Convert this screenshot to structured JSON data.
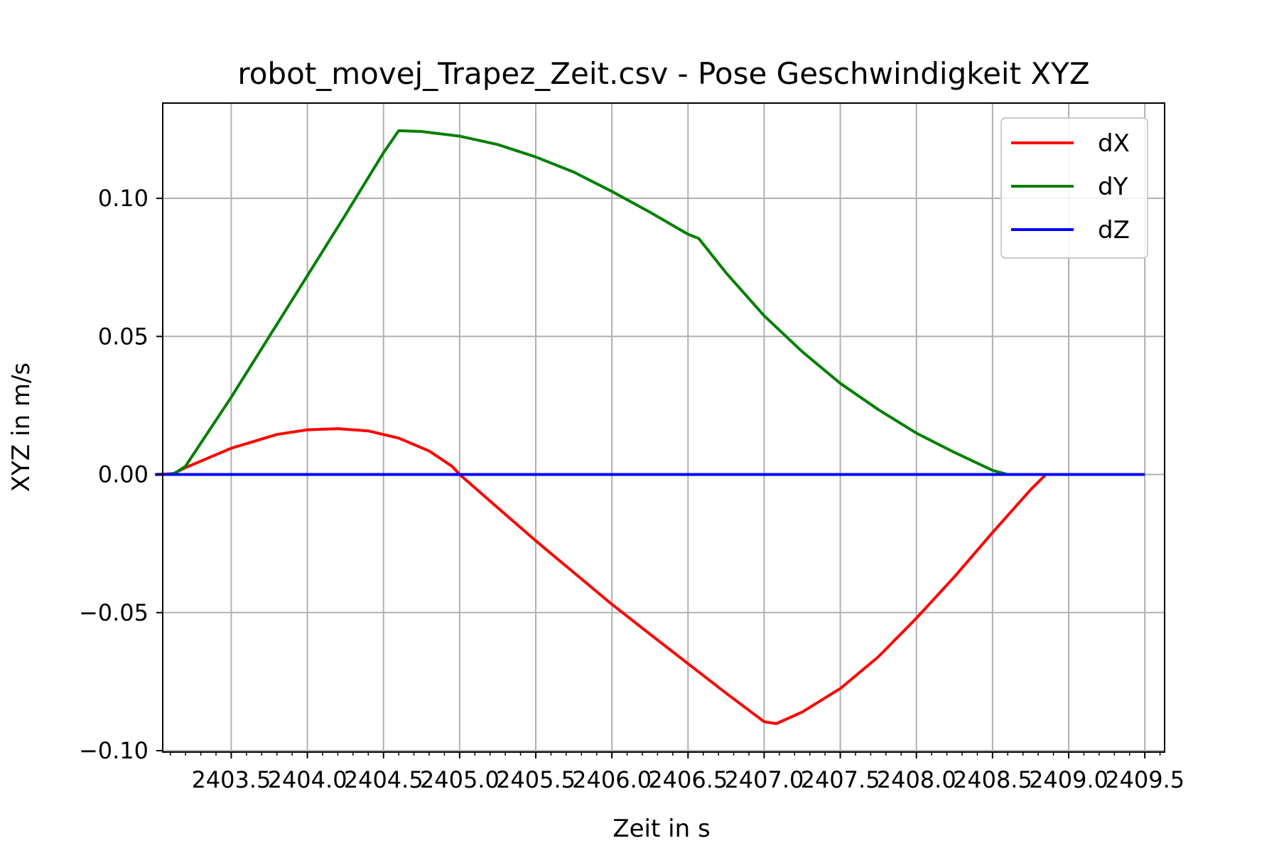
{
  "chart_data": {
    "type": "line",
    "title": "robot_movej_Trapez_Zeit.csv - Pose Geschwindigkeit XYZ",
    "xlabel": "Zeit in s",
    "ylabel": "XYZ in m/s",
    "xlim": [
      2403.05,
      2409.63
    ],
    "ylim": [
      -0.1005,
      0.1345
    ],
    "x_ticks": [
      2403.5,
      2404.0,
      2404.5,
      2405.0,
      2405.5,
      2406.0,
      2406.5,
      2407.0,
      2407.5,
      2408.0,
      2408.5,
      2409.0,
      2409.5
    ],
    "x_tick_labels": [
      "2403.5",
      "2404.0",
      "2404.5",
      "2405.0",
      "2405.5",
      "2406.0",
      "2406.5",
      "2407.0",
      "2407.5",
      "2408.0",
      "2408.5",
      "2409.0",
      "2409.5"
    ],
    "y_ticks": [
      -0.1,
      -0.05,
      0.0,
      0.05,
      0.1
    ],
    "y_tick_labels": [
      "−0.10",
      "−0.05",
      "0.00",
      "0.05",
      "0.10"
    ],
    "grid": true,
    "legend": "top-right",
    "series": [
      {
        "name": "dX",
        "color": "#ff0000",
        "points": [
          [
            2403.0,
            0.0
          ],
          [
            2403.12,
            0.0003
          ],
          [
            2403.2,
            0.0025
          ],
          [
            2403.5,
            0.0095
          ],
          [
            2403.8,
            0.0145
          ],
          [
            2404.0,
            0.0162
          ],
          [
            2404.2,
            0.0166
          ],
          [
            2404.4,
            0.0158
          ],
          [
            2404.6,
            0.0132
          ],
          [
            2404.8,
            0.0085
          ],
          [
            2404.95,
            0.003
          ],
          [
            2405.0,
            0.0
          ],
          [
            2405.25,
            -0.012
          ],
          [
            2405.5,
            -0.024
          ],
          [
            2405.75,
            -0.0355
          ],
          [
            2406.0,
            -0.047
          ],
          [
            2406.25,
            -0.0578
          ],
          [
            2406.5,
            -0.0685
          ],
          [
            2406.75,
            -0.0792
          ],
          [
            2407.0,
            -0.0895
          ],
          [
            2407.08,
            -0.0902
          ],
          [
            2407.25,
            -0.086
          ],
          [
            2407.5,
            -0.0775
          ],
          [
            2407.75,
            -0.066
          ],
          [
            2408.0,
            -0.052
          ],
          [
            2408.25,
            -0.037
          ],
          [
            2408.5,
            -0.021
          ],
          [
            2408.75,
            -0.0055
          ],
          [
            2408.85,
            0.0
          ],
          [
            2409.5,
            0.0
          ]
        ]
      },
      {
        "name": "dY",
        "color": "#008000",
        "points": [
          [
            2403.0,
            0.0
          ],
          [
            2403.08,
            0.0
          ],
          [
            2403.13,
            0.0005
          ],
          [
            2403.2,
            0.003
          ],
          [
            2403.5,
            0.028
          ],
          [
            2403.75,
            0.05
          ],
          [
            2404.0,
            0.072
          ],
          [
            2404.25,
            0.094
          ],
          [
            2404.5,
            0.1165
          ],
          [
            2404.6,
            0.1245
          ],
          [
            2404.75,
            0.1242
          ],
          [
            2405.0,
            0.1225
          ],
          [
            2405.25,
            0.1195
          ],
          [
            2405.5,
            0.115
          ],
          [
            2405.75,
            0.1095
          ],
          [
            2406.0,
            0.1025
          ],
          [
            2406.25,
            0.095
          ],
          [
            2406.5,
            0.087
          ],
          [
            2406.57,
            0.0855
          ],
          [
            2406.75,
            0.073
          ],
          [
            2407.0,
            0.0575
          ],
          [
            2407.25,
            0.0445
          ],
          [
            2407.5,
            0.033
          ],
          [
            2407.75,
            0.0235
          ],
          [
            2408.0,
            0.015
          ],
          [
            2408.25,
            0.008
          ],
          [
            2408.5,
            0.0015
          ],
          [
            2408.6,
            0.0
          ],
          [
            2409.5,
            0.0
          ]
        ]
      },
      {
        "name": "dZ",
        "color": "#0000ff",
        "points": [
          [
            2403.0,
            0.0
          ],
          [
            2409.5,
            0.0
          ]
        ]
      }
    ]
  }
}
